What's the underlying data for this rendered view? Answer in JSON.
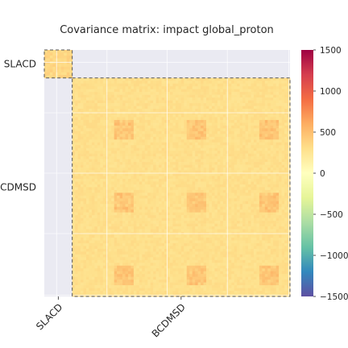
{
  "chart_data": {
    "type": "heatmap",
    "title": "Covariance matrix: impact global_proton",
    "xlabel": "",
    "ylabel": "",
    "blocks": [
      {
        "name": "SLACD",
        "start": 0,
        "end": 10
      },
      {
        "name": "BCDMSD",
        "start": 10,
        "end": 88
      }
    ],
    "matrix_size": 88,
    "tick_labels": [
      "SLACD",
      "BCDMSD"
    ],
    "colorbar": {
      "colormap": "Spectral_r",
      "vmin": -1500,
      "vmax": 1500,
      "ticks": [
        1500,
        1000,
        500,
        0,
        -500,
        -1000,
        -1500
      ],
      "tick_labels": [
        "1500",
        "1000",
        "500",
        "0",
        "−500",
        "−1000",
        "−1500"
      ]
    },
    "typical_values": {
      "slacd_block": 350,
      "bcdmsd_block": 300,
      "bcdmsd_peak": 520,
      "off_diagonal": 0
    },
    "grid": true,
    "colors": {
      "background": "#eaeaf2",
      "grid": "#ffffff",
      "block_border": "#555555"
    }
  }
}
